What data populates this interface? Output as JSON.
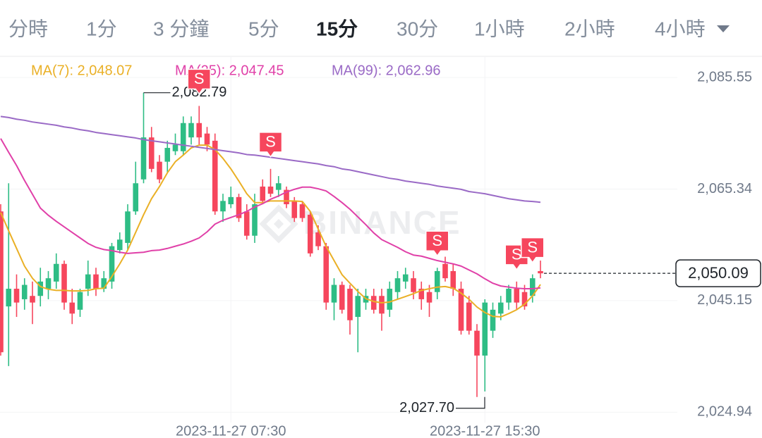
{
  "tabs": {
    "items": [
      "分時",
      "1分",
      "3 分鐘",
      "5分",
      "15分",
      "30分",
      "1小時",
      "2小時",
      "4小時"
    ],
    "active_index": 4
  },
  "chart_data": {
    "type": "candlestick",
    "watermark": "BINANCE",
    "categories": [
      null,
      null,
      null,
      null,
      null,
      null,
      null,
      null,
      null,
      null,
      null,
      null,
      null,
      null,
      null,
      null,
      null,
      null,
      null,
      null,
      null,
      null,
      null,
      null,
      null,
      null,
      null,
      null,
      null,
      "2023-11-27 07:30",
      null,
      null,
      null,
      null,
      null,
      null,
      null,
      null,
      null,
      null,
      null,
      null,
      null,
      null,
      null,
      null,
      null,
      null,
      null,
      null,
      null,
      null,
      null,
      null,
      null,
      null,
      null,
      null,
      null,
      null,
      null,
      "2023-11-27 15:30",
      null,
      null,
      null,
      null,
      null,
      null,
      null
    ],
    "open": [
      2061.3,
      2044.1,
      2047.3,
      2045.4,
      2046.0,
      2046.0,
      2047.3,
      2048.6,
      2051.8,
      2044.8,
      2043.5,
      2047.3,
      2049.9,
      2047.3,
      2048.6,
      2054.3,
      2055.6,
      2061.3,
      2067.1,
      2074.7,
      2070.3,
      2070.3,
      2072.2,
      2072.2,
      2074.7,
      2077.3,
      2075.4,
      2074.1,
      2061.3,
      2062.6,
      2063.9,
      2061.3,
      2056.9,
      2065.8,
      2065.8,
      2065.2,
      2065.2,
      2063.2,
      2062.6,
      2060.7,
      2057.5,
      2055.0,
      2044.8,
      2048.0,
      2047.3,
      2042.2,
      2044.8,
      2046.0,
      2046.0,
      2043.5,
      2046.7,
      2048.6,
      2049.2,
      2047.3,
      2046.7,
      2046.7,
      2051.8,
      2050.5,
      2047.3,
      2044.8,
      2039.7,
      2035.2,
      2039.7,
      2042.8,
      2044.8,
      2047.3,
      2046.7,
      2046.0,
      2050.5
    ],
    "high": [
      2062.6,
      2066.4,
      2049.9,
      2049.2,
      2048.6,
      2051.1,
      2050.5,
      2053.7,
      2052.4,
      2047.3,
      2047.3,
      2052.4,
      2051.1,
      2050.5,
      2055.6,
      2057.5,
      2062.6,
      2070.3,
      2082.79,
      2076.6,
      2071.5,
      2074.1,
      2075.4,
      2078.5,
      2078.5,
      2080.4,
      2076.6,
      2075.4,
      2064.5,
      2065.8,
      2064.5,
      2062.6,
      2064.5,
      2067.1,
      2069.0,
      2067.7,
      2065.8,
      2063.9,
      2063.2,
      2061.3,
      2058.8,
      2055.6,
      2049.2,
      2048.6,
      2048.0,
      2047.3,
      2047.3,
      2047.3,
      2047.3,
      2048.6,
      2050.5,
      2051.1,
      2050.5,
      2048.6,
      2048.0,
      2051.1,
      2053.1,
      2051.8,
      2048.6,
      2046.0,
      2040.9,
      2045.4,
      2044.8,
      2046.0,
      2048.0,
      2048.6,
      2048.0,
      2049.9,
      2052.4
    ],
    "low": [
      2035.2,
      2033.3,
      2042.2,
      2043.5,
      2040.9,
      2044.1,
      2045.4,
      2047.3,
      2043.5,
      2040.9,
      2042.2,
      2046.0,
      2046.0,
      2046.7,
      2047.3,
      2053.7,
      2054.3,
      2060.7,
      2066.4,
      2068.4,
      2066.4,
      2068.4,
      2071.5,
      2071.5,
      2073.4,
      2073.4,
      2072.2,
      2060.7,
      2059.4,
      2061.9,
      2059.4,
      2056.2,
      2055.6,
      2062.6,
      2063.9,
      2063.9,
      2061.9,
      2059.4,
      2059.4,
      2053.1,
      2054.3,
      2043.5,
      2041.6,
      2042.8,
      2039.0,
      2035.8,
      2043.5,
      2042.8,
      2039.7,
      2042.2,
      2045.4,
      2047.3,
      2045.4,
      2043.5,
      2042.2,
      2045.4,
      2048.6,
      2046.0,
      2039.0,
      2039.0,
      2027.7,
      2028.7,
      2038.4,
      2041.6,
      2043.5,
      2043.5,
      2043.5,
      2044.8,
      2049.2
    ],
    "close": [
      2035.8,
      2047.3,
      2044.8,
      2048.0,
      2044.8,
      2048.6,
      2049.2,
      2051.8,
      2044.8,
      2042.8,
      2046.7,
      2049.9,
      2047.3,
      2049.2,
      2055.0,
      2056.2,
      2061.3,
      2066.4,
      2074.7,
      2069.0,
      2067.1,
      2072.8,
      2073.4,
      2077.3,
      2077.3,
      2074.7,
      2073.4,
      2061.3,
      2063.2,
      2063.9,
      2060.1,
      2056.9,
      2062.6,
      2063.2,
      2064.5,
      2066.4,
      2062.6,
      2060.1,
      2060.1,
      2053.7,
      2055.0,
      2044.8,
      2048.0,
      2043.5,
      2041.6,
      2046.0,
      2046.0,
      2043.5,
      2042.8,
      2047.3,
      2049.2,
      2049.9,
      2046.7,
      2045.4,
      2044.8,
      2050.5,
      2049.2,
      2047.3,
      2039.7,
      2039.7,
      2035.2,
      2044.8,
      2043.5,
      2044.8,
      2047.3,
      2044.8,
      2044.1,
      2049.2,
      2050.09
    ],
    "up_color": "#2ebd85",
    "down_color": "#f6465d",
    "series": [
      {
        "name": "MA(7)",
        "legend_label": "MA(7): 2,048.07",
        "color": "#eab026",
        "values": [
          2061.1,
          2057.8,
          2054.6,
          2051.4,
          2049.2,
          2047.7,
          2047.2,
          2047.0,
          2047.0,
          2046.9,
          2046.9,
          2047.0,
          2047.3,
          2047.4,
          2049.5,
          2051.8,
          2054.3,
          2057.5,
          2060.7,
          2063.6,
          2065.8,
          2068.3,
          2070.3,
          2071.5,
          2072.8,
          2073.3,
          2073.3,
          2072.5,
          2070.9,
          2069.0,
          2066.8,
          2064.5,
          2062.9,
          2062.9,
          2063.2,
          2063.2,
          2063.2,
          2063.2,
          2063.1,
          2061.3,
          2058.1,
          2054.95,
          2052.4,
          2049.85,
          2048.3,
          2046.8,
          2045.5,
          2045.0,
          2044.75,
          2044.9,
          2045.4,
          2045.9,
          2046.4,
          2047.0,
          2047.3,
          2047.6,
          2047.7,
          2047.4,
          2046.5,
          2045.4,
          2044.0,
          2043.0,
          2042.3,
          2042.2,
          2042.8,
          2043.5,
          2044.5,
          2046.0,
          2048.07
        ]
      },
      {
        "name": "MA(25)",
        "legend_label": "MA(25): 2,047.45",
        "color": "#e040a8",
        "values": [
          2074.5,
          2072.0,
          2069.6,
          2066.9,
          2064.4,
          2061.9,
          2060.6,
          2059.5,
          2058.5,
          2057.5,
          2056.5,
          2055.5,
          2054.8,
          2054.4,
          2054.2,
          2053.9,
          2053.7,
          2053.8,
          2053.9,
          2054.2,
          2054.3,
          2054.6,
          2055.0,
          2055.4,
          2055.9,
          2056.5,
          2057.6,
          2059.0,
          2059.7,
          2060.2,
          2060.7,
          2061.3,
          2062.1,
          2062.7,
          2063.5,
          2064.1,
          2064.8,
          2065.3,
          2065.7,
          2065.7,
          2065.4,
          2065.0,
          2064.0,
          2062.9,
          2061.7,
          2060.3,
          2058.9,
          2057.4,
          2056.2,
          2055.5,
          2054.8,
          2054.0,
          2053.4,
          2053.2,
          2052.8,
          2052.4,
          2052.1,
          2051.8,
          2051.4,
          2050.7,
          2050.0,
          2049.1,
          2048.3,
          2047.8,
          2047.6,
          2047.4,
          2047.3,
          2047.3,
          2047.45
        ]
      },
      {
        "name": "MA(99)",
        "legend_label": "MA(99): 2,062.96",
        "color": "#9a6ac6",
        "values": [
          2078.5,
          2078.3,
          2078.0,
          2077.8,
          2077.5,
          2077.3,
          2077.1,
          2076.9,
          2076.6,
          2076.4,
          2076.1,
          2075.9,
          2075.6,
          2075.4,
          2075.2,
          2075.0,
          2074.8,
          2074.6,
          2074.3,
          2074.1,
          2073.9,
          2073.7,
          2073.5,
          2073.3,
          2073.1,
          2072.9,
          2072.7,
          2072.5,
          2072.3,
          2072.1,
          2071.9,
          2071.6,
          2071.5,
          2071.3,
          2071.1,
          2070.9,
          2070.7,
          2070.5,
          2070.3,
          2070.1,
          2069.9,
          2069.6,
          2069.4,
          2069.0,
          2068.8,
          2068.5,
          2068.2,
          2067.9,
          2067.6,
          2067.3,
          2067.1,
          2066.8,
          2066.6,
          2066.4,
          2066.2,
          2065.9,
          2065.7,
          2065.5,
          2065.3,
          2064.9,
          2064.7,
          2064.5,
          2064.2,
          2063.9,
          2063.6,
          2063.4,
          2063.2,
          2063.1,
          2062.96
        ]
      }
    ],
    "high_label": "2,082.79",
    "low_label": "2,027.70",
    "last_price_label": "2,050.09",
    "signals": [
      {
        "index": 25,
        "label": "S"
      },
      {
        "index": 34,
        "label": "S"
      },
      {
        "index": 55,
        "label": "S"
      },
      {
        "index": 65,
        "label": "S"
      },
      {
        "index": 67,
        "label": "S"
      }
    ],
    "ylim": [
      2023.08,
      2089.38
    ],
    "yticks": [
      {
        "value": 2085.55,
        "label": "2,085.55"
      },
      {
        "value": 2065.34,
        "label": "2,065.34"
      },
      {
        "value": 2045.15,
        "label": "2,045.15"
      },
      {
        "value": 2024.94,
        "label": "2,024.94"
      }
    ],
    "grid": true
  }
}
